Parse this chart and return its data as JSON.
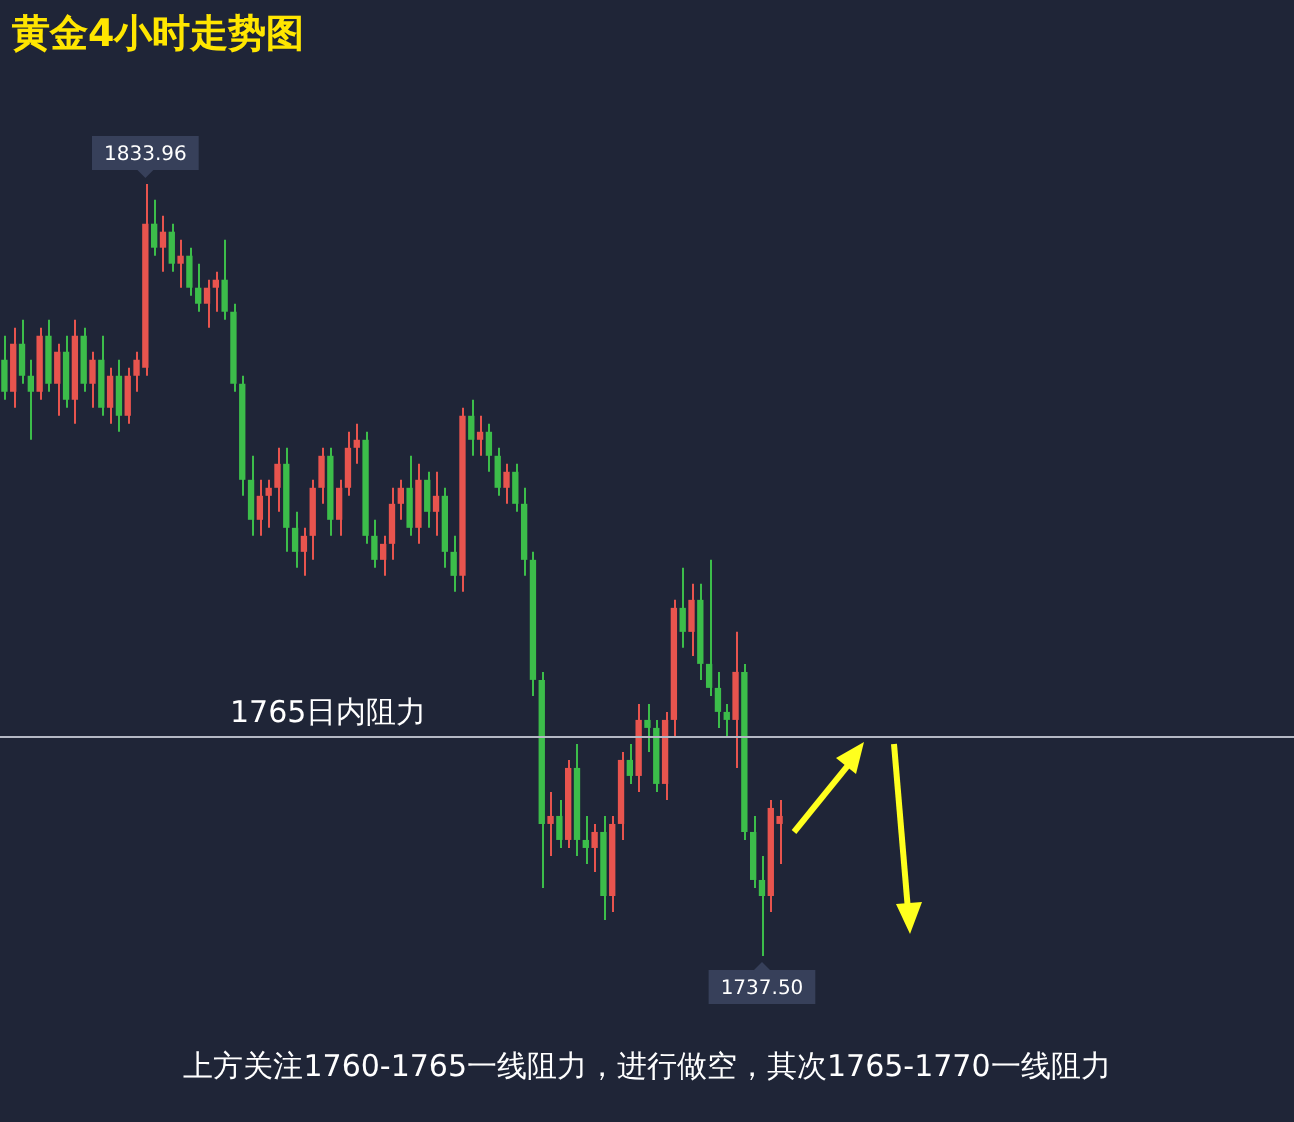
{
  "chart_data": {
    "type": "candlestick",
    "title": "黄金4小时走势图",
    "categories": [
      null,
      null,
      null,
      null,
      null,
      null,
      null,
      null,
      null,
      null,
      null,
      null,
      null,
      null,
      null,
      null,
      null,
      null,
      null,
      null,
      null,
      null,
      null,
      null,
      null,
      null,
      null,
      null,
      null,
      null,
      null,
      null,
      null,
      null,
      null,
      null,
      null,
      null,
      null,
      null,
      null,
      null,
      null,
      null,
      null,
      null,
      null,
      null,
      null,
      null,
      null,
      null,
      null,
      null,
      null,
      null,
      null,
      null,
      null,
      null,
      null,
      null,
      null,
      null,
      null,
      null,
      null,
      null,
      null,
      null,
      null,
      null,
      null,
      null,
      null,
      null,
      null,
      null,
      null,
      null,
      null,
      null,
      null,
      null,
      null,
      null,
      null,
      null,
      null
    ],
    "ohlc": [
      [
        1812,
        1815,
        1807,
        1808
      ],
      [
        1808,
        1816,
        1806,
        1814
      ],
      [
        1814,
        1817,
        1809,
        1810
      ],
      [
        1810,
        1812,
        1802,
        1808
      ],
      [
        1808,
        1816,
        1807,
        1815
      ],
      [
        1815,
        1817,
        1808,
        1809
      ],
      [
        1809,
        1814,
        1805,
        1813
      ],
      [
        1813,
        1815,
        1806,
        1807
      ],
      [
        1807,
        1817,
        1804,
        1815
      ],
      [
        1815,
        1816,
        1808,
        1809
      ],
      [
        1809,
        1813,
        1806,
        1812
      ],
      [
        1812,
        1815,
        1805,
        1806
      ],
      [
        1806,
        1811,
        1804,
        1810
      ],
      [
        1810,
        1812,
        1803,
        1805
      ],
      [
        1805,
        1811,
        1804,
        1810
      ],
      [
        1810,
        1813,
        1808,
        1812
      ],
      [
        1811,
        1833.96,
        1810,
        1829
      ],
      [
        1829,
        1832,
        1825,
        1826
      ],
      [
        1826,
        1830,
        1823,
        1828
      ],
      [
        1828,
        1829,
        1823,
        1824
      ],
      [
        1824,
        1827,
        1821,
        1825
      ],
      [
        1825,
        1826,
        1820,
        1821
      ],
      [
        1821,
        1824,
        1818,
        1819
      ],
      [
        1819,
        1822,
        1816,
        1821
      ],
      [
        1821,
        1823,
        1818,
        1822
      ],
      [
        1822,
        1827,
        1817,
        1818
      ],
      [
        1818,
        1819,
        1808,
        1809
      ],
      [
        1809,
        1810,
        1795,
        1797
      ],
      [
        1797,
        1800,
        1790,
        1792
      ],
      [
        1792,
        1797,
        1790,
        1795
      ],
      [
        1795,
        1797,
        1791,
        1796
      ],
      [
        1796,
        1801,
        1793,
        1799
      ],
      [
        1799,
        1801,
        1788,
        1791
      ],
      [
        1791,
        1793,
        1786,
        1788
      ],
      [
        1788,
        1791,
        1785,
        1790
      ],
      [
        1790,
        1797,
        1787,
        1796
      ],
      [
        1796,
        1801,
        1794,
        1800
      ],
      [
        1800,
        1801,
        1790,
        1792
      ],
      [
        1792,
        1797,
        1790,
        1796
      ],
      [
        1796,
        1803,
        1795,
        1801
      ],
      [
        1801,
        1804,
        1799,
        1802
      ],
      [
        1802,
        1803,
        1789,
        1790
      ],
      [
        1790,
        1792,
        1786,
        1787
      ],
      [
        1787,
        1790,
        1785,
        1789
      ],
      [
        1789,
        1796,
        1787,
        1794
      ],
      [
        1794,
        1797,
        1792,
        1796
      ],
      [
        1796,
        1800,
        1790,
        1791
      ],
      [
        1791,
        1799,
        1789,
        1797
      ],
      [
        1797,
        1798,
        1791,
        1793
      ],
      [
        1793,
        1798,
        1790,
        1795
      ],
      [
        1795,
        1796,
        1786,
        1788
      ],
      [
        1788,
        1790,
        1783,
        1785
      ],
      [
        1785,
        1806,
        1783,
        1805
      ],
      [
        1805,
        1807,
        1800,
        1802
      ],
      [
        1802,
        1805,
        1800,
        1803
      ],
      [
        1803,
        1804,
        1798,
        1800
      ],
      [
        1800,
        1801,
        1795,
        1796
      ],
      [
        1796,
        1799,
        1794,
        1798
      ],
      [
        1798,
        1799,
        1793,
        1794
      ],
      [
        1794,
        1796,
        1785,
        1787
      ],
      [
        1787,
        1788,
        1770,
        1772
      ],
      [
        1772,
        1773,
        1746,
        1754
      ],
      [
        1754,
        1758,
        1750,
        1755
      ],
      [
        1755,
        1757,
        1751,
        1752
      ],
      [
        1752,
        1762,
        1751,
        1761
      ],
      [
        1761,
        1764,
        1750,
        1752
      ],
      [
        1752,
        1755,
        1749,
        1751
      ],
      [
        1751,
        1754,
        1748,
        1753
      ],
      [
        1753,
        1755,
        1742,
        1745
      ],
      [
        1745,
        1755,
        1743,
        1754
      ],
      [
        1754,
        1763,
        1752,
        1762
      ],
      [
        1762,
        1764,
        1759,
        1760
      ],
      [
        1760,
        1769,
        1758,
        1767
      ],
      [
        1767,
        1769,
        1763,
        1766
      ],
      [
        1766,
        1767,
        1758,
        1759
      ],
      [
        1759,
        1768,
        1757,
        1767
      ],
      [
        1767,
        1782,
        1765,
        1781
      ],
      [
        1781,
        1786,
        1776,
        1778
      ],
      [
        1778,
        1784,
        1775,
        1782
      ],
      [
        1782,
        1784,
        1772,
        1774
      ],
      [
        1774,
        1787,
        1770,
        1771
      ],
      [
        1771,
        1773,
        1766,
        1768
      ],
      [
        1768,
        1769,
        1765,
        1767
      ],
      [
        1767,
        1778,
        1761,
        1773
      ],
      [
        1773,
        1774,
        1752,
        1753
      ],
      [
        1753,
        1755,
        1746,
        1747
      ],
      [
        1747,
        1750,
        1737.5,
        1745
      ],
      [
        1745,
        1757,
        1743,
        1756
      ],
      [
        1754,
        1757,
        1749,
        1755
      ]
    ],
    "colors": [
      "#3cbd4a",
      "#e8544e",
      "#3cbd4a",
      "#3cbd4a",
      "#e8544e",
      "#3cbd4a",
      "#e8544e",
      "#3cbd4a",
      "#e8544e",
      "#3cbd4a",
      "#e8544e",
      "#3cbd4a",
      "#e8544e",
      "#3cbd4a",
      "#e8544e",
      "#e8544e",
      "#e8544e",
      "#3cbd4a",
      "#e8544e",
      "#3cbd4a",
      "#e8544e",
      "#3cbd4a",
      "#3cbd4a",
      "#e8544e",
      "#e8544e",
      "#3cbd4a",
      "#3cbd4a",
      "#3cbd4a",
      "#3cbd4a",
      "#e8544e",
      "#e8544e",
      "#e8544e",
      "#3cbd4a",
      "#3cbd4a",
      "#e8544e",
      "#e8544e",
      "#e8544e",
      "#3cbd4a",
      "#e8544e",
      "#e8544e",
      "#e8544e",
      "#3cbd4a",
      "#3cbd4a",
      "#e8544e",
      "#e8544e",
      "#e8544e",
      "#3cbd4a",
      "#e8544e",
      "#3cbd4a",
      "#e8544e",
      "#3cbd4a",
      "#3cbd4a",
      "#e8544e",
      "#3cbd4a",
      "#e8544e",
      "#3cbd4a",
      "#3cbd4a",
      "#e8544e",
      "#3cbd4a",
      "#3cbd4a",
      "#3cbd4a",
      "#3cbd4a",
      "#e8544e",
      "#3cbd4a",
      "#e8544e",
      "#3cbd4a",
      "#3cbd4a",
      "#e8544e",
      "#3cbd4a",
      "#e8544e",
      "#e8544e",
      "#3cbd4a",
      "#e8544e",
      "#3cbd4a",
      "#3cbd4a",
      "#e8544e",
      "#e8544e",
      "#3cbd4a",
      "#e8544e",
      "#3cbd4a",
      "#3cbd4a",
      "#3cbd4a",
      "#3cbd4a",
      "#e8544e",
      "#3cbd4a",
      "#3cbd4a",
      "#3cbd4a",
      "#e8544e",
      "#e8544e"
    ],
    "annotations": [
      {
        "text": "1833.96",
        "y": 1833.96
      },
      {
        "text": "1737.50",
        "y": 1737.5
      },
      "上方关注1760-1765一线阻力，进行做空，其次1765-1770一线阻力"
    ],
    "ref_lines": [
      {
        "axis": "y",
        "value": 1765,
        "label": "1765日内阻力",
        "color": "#b4b8c4"
      }
    ],
    "tick_labels": false
  }
}
